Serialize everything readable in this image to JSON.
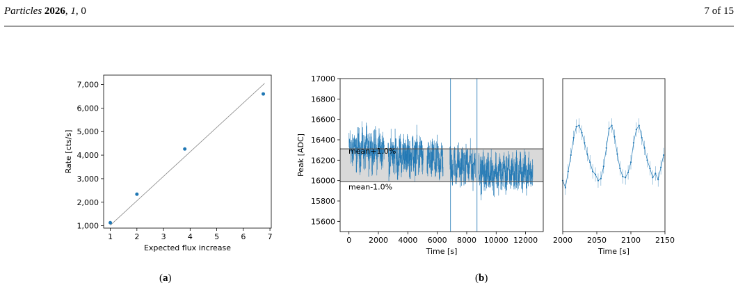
{
  "header": {
    "journal": "Particles",
    "year": "2026",
    "volume": "1",
    "article": "0",
    "page": "7 of 15"
  },
  "captions": {
    "a": "a",
    "b": "b"
  },
  "colors": {
    "series": "#1f77b4",
    "fit": "#888888",
    "band": "#d9d9d9",
    "band_line": "#555555"
  },
  "chart_data": [
    {
      "id": "a",
      "type": "scatter",
      "xlabel": "Expected flux increase",
      "ylabel": "Rate [cts/s]",
      "xlim": [
        0.75,
        7.05
      ],
      "ylim": [
        900,
        7400
      ],
      "xticks": [
        1,
        2,
        3,
        4,
        5,
        6,
        7
      ],
      "yticks": [
        1000,
        2000,
        3000,
        4000,
        5000,
        6000,
        7000
      ],
      "ytick_labels": [
        "1,000",
        "2,000",
        "3,000",
        "4,000",
        "5,000",
        "6,000",
        "7,000"
      ],
      "points": [
        [
          1.0,
          1130
        ],
        [
          2.0,
          2340
        ],
        [
          3.8,
          4260
        ],
        [
          6.75,
          6600
        ]
      ],
      "fit_line": [
        [
          1.0,
          1020
        ],
        [
          6.8,
          7050
        ]
      ]
    },
    {
      "id": "b-main",
      "type": "line",
      "xlabel": "Time [s]",
      "ylabel": "Peak [ADC]",
      "xlim": [
        -600,
        13200
      ],
      "ylim": [
        15500,
        17000
      ],
      "xticks": [
        0,
        2000,
        4000,
        6000,
        8000,
        10000,
        12000
      ],
      "yticks": [
        15600,
        15800,
        16000,
        16200,
        16400,
        16600,
        16800,
        17000
      ],
      "band": {
        "low": 15988,
        "high": 16311,
        "upper_label": "mean+1.0%",
        "lower_label": "mean-1.0%"
      },
      "segments": [
        {
          "x": [
            0,
            2400
          ],
          "mean": 16310,
          "noise": 110
        },
        {
          "x": [
            2650,
            5050
          ],
          "mean": 16250,
          "noise": 115
        },
        {
          "x": [
            5300,
            6400
          ],
          "mean": 16200,
          "noise": 110
        },
        {
          "x": [
            6850,
            8600
          ],
          "mean": 16150,
          "noise": 105
        },
        {
          "x": [
            8800,
            12500
          ],
          "mean": 16080,
          "noise": 105
        }
      ],
      "spikes": [
        6900,
        8700
      ]
    },
    {
      "id": "b-zoom",
      "type": "line",
      "xlabel": "Time [s]",
      "xlim": [
        2000,
        2150
      ],
      "ylim": [
        15500,
        17000
      ],
      "xticks": [
        2000,
        2050,
        2100,
        2150
      ],
      "points": [
        [
          2000,
          16000
        ],
        [
          2004,
          15930
        ],
        [
          2008,
          16090
        ],
        [
          2012,
          16250
        ],
        [
          2016,
          16420
        ],
        [
          2020,
          16530
        ],
        [
          2024,
          16540
        ],
        [
          2028,
          16470
        ],
        [
          2032,
          16370
        ],
        [
          2036,
          16260
        ],
        [
          2040,
          16180
        ],
        [
          2044,
          16090
        ],
        [
          2048,
          16060
        ],
        [
          2052,
          16000
        ],
        [
          2056,
          16020
        ],
        [
          2060,
          16140
        ],
        [
          2064,
          16320
        ],
        [
          2068,
          16510
        ],
        [
          2072,
          16540
        ],
        [
          2076,
          16430
        ],
        [
          2080,
          16260
        ],
        [
          2084,
          16120
        ],
        [
          2088,
          16040
        ],
        [
          2092,
          16030
        ],
        [
          2096,
          16080
        ],
        [
          2100,
          16180
        ],
        [
          2104,
          16370
        ],
        [
          2108,
          16500
        ],
        [
          2112,
          16540
        ],
        [
          2116,
          16420
        ],
        [
          2120,
          16320
        ],
        [
          2124,
          16200
        ],
        [
          2128,
          16120
        ],
        [
          2132,
          16030
        ],
        [
          2136,
          16070
        ],
        [
          2140,
          16010
        ],
        [
          2144,
          16130
        ],
        [
          2148,
          16250
        ]
      ]
    }
  ]
}
